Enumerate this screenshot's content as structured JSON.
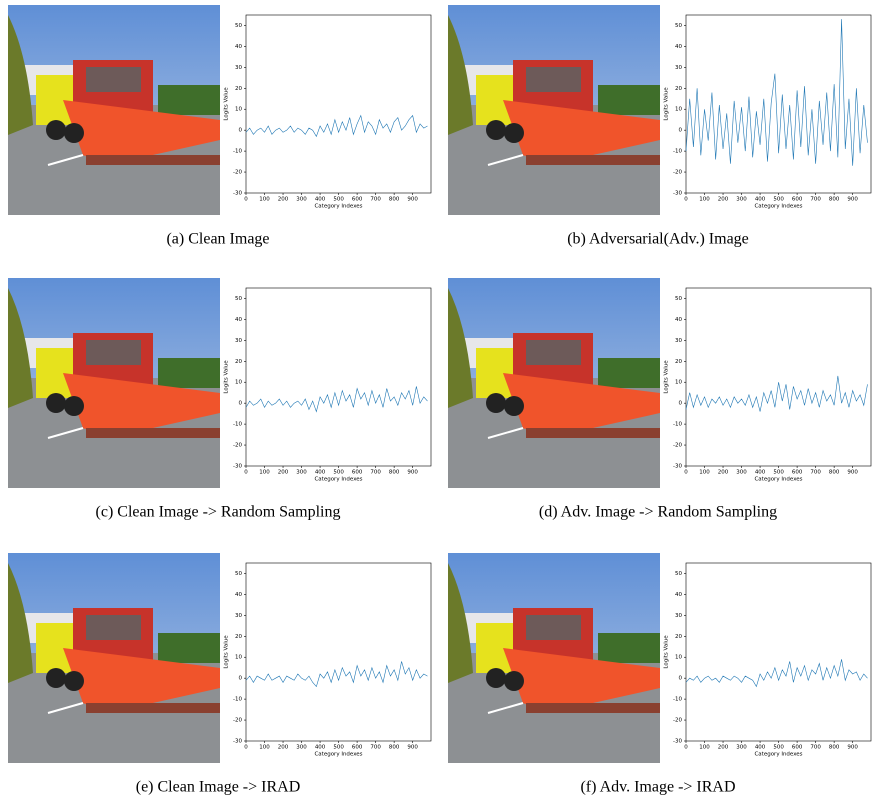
{
  "chart_data": [
    {
      "type": "line",
      "caption": "(a) Clean Image",
      "xlabel": "Category Indexes",
      "ylabel": "Logits Value",
      "color": "#1f77b4",
      "xlim": [
        0,
        999
      ],
      "ylim": [
        -30,
        55
      ],
      "xticks": [
        0,
        100,
        200,
        300,
        400,
        500,
        600,
        700,
        800,
        900
      ],
      "yticks": [
        -30,
        -20,
        -10,
        0,
        10,
        20,
        30,
        40,
        50
      ],
      "x": [
        0,
        20,
        40,
        60,
        80,
        100,
        120,
        140,
        160,
        180,
        200,
        220,
        240,
        260,
        280,
        300,
        320,
        340,
        360,
        380,
        400,
        420,
        440,
        460,
        480,
        500,
        520,
        540,
        560,
        580,
        600,
        620,
        640,
        660,
        680,
        700,
        720,
        740,
        760,
        780,
        800,
        820,
        840,
        860,
        880,
        900,
        920,
        940,
        960,
        980
      ],
      "values": [
        -1,
        1,
        -2,
        0,
        1,
        -1,
        2,
        -2,
        0,
        1,
        -1,
        0,
        2,
        -1,
        1,
        0,
        -2,
        1,
        0,
        -3,
        2,
        -1,
        3,
        -2,
        5,
        -1,
        4,
        0,
        6,
        -2,
        3,
        7,
        -1,
        4,
        2,
        -2,
        5,
        1,
        3,
        -1,
        4,
        6,
        0,
        2,
        5,
        7,
        -1,
        3,
        1,
        2
      ]
    },
    {
      "type": "line",
      "caption": "(b) Adversarial(Adv.) Image",
      "xlabel": "Category Indexes",
      "ylabel": "Logits Value",
      "color": "#1f77b4",
      "xlim": [
        0,
        999
      ],
      "ylim": [
        -30,
        55
      ],
      "xticks": [
        0,
        100,
        200,
        300,
        400,
        500,
        600,
        700,
        800,
        900
      ],
      "yticks": [
        -30,
        -20,
        -10,
        0,
        10,
        20,
        30,
        40,
        50
      ],
      "x": [
        0,
        20,
        40,
        60,
        80,
        100,
        120,
        140,
        160,
        180,
        200,
        220,
        240,
        260,
        280,
        300,
        320,
        340,
        360,
        380,
        400,
        420,
        440,
        460,
        480,
        500,
        520,
        540,
        560,
        580,
        600,
        620,
        640,
        660,
        680,
        700,
        720,
        740,
        760,
        780,
        800,
        820,
        840,
        860,
        880,
        900,
        920,
        940,
        960,
        980
      ],
      "values": [
        -10,
        15,
        -8,
        20,
        -12,
        10,
        -5,
        18,
        -14,
        12,
        -9,
        8,
        -16,
        14,
        -6,
        11,
        -10,
        16,
        -13,
        9,
        -7,
        15,
        -15,
        13,
        27,
        -11,
        17,
        -9,
        12,
        -14,
        19,
        -8,
        21,
        -12,
        10,
        -16,
        14,
        -7,
        18,
        -10,
        22,
        -13,
        53,
        -9,
        15,
        -17,
        20,
        -11,
        12,
        -6
      ]
    },
    {
      "type": "line",
      "caption": "(c) Clean Image -> Random Sampling",
      "xlabel": "Category Indexes",
      "ylabel": "Logits Value",
      "color": "#1f77b4",
      "xlim": [
        0,
        999
      ],
      "ylim": [
        -30,
        55
      ],
      "xticks": [
        0,
        100,
        200,
        300,
        400,
        500,
        600,
        700,
        800,
        900
      ],
      "yticks": [
        -30,
        -20,
        -10,
        0,
        10,
        20,
        30,
        40,
        50
      ],
      "x": [
        0,
        20,
        40,
        60,
        80,
        100,
        120,
        140,
        160,
        180,
        200,
        220,
        240,
        260,
        280,
        300,
        320,
        340,
        360,
        380,
        400,
        420,
        440,
        460,
        480,
        500,
        520,
        540,
        560,
        580,
        600,
        620,
        640,
        660,
        680,
        700,
        720,
        740,
        760,
        780,
        800,
        820,
        840,
        860,
        880,
        900,
        920,
        940,
        960,
        980
      ],
      "values": [
        -2,
        1,
        -1,
        0,
        2,
        -2,
        1,
        -1,
        0,
        2,
        -1,
        1,
        -2,
        0,
        1,
        -1,
        2,
        -3,
        1,
        -4,
        3,
        0,
        4,
        -2,
        5,
        -1,
        6,
        1,
        4,
        -2,
        7,
        2,
        5,
        -1,
        6,
        0,
        4,
        -2,
        7,
        1,
        3,
        -1,
        5,
        2,
        6,
        -1,
        8,
        0,
        3,
        1
      ]
    },
    {
      "type": "line",
      "caption": "(d) Adv. Image -> Random Sampling",
      "xlabel": "Category Indexes",
      "ylabel": "Logits Value",
      "color": "#1f77b4",
      "xlim": [
        0,
        999
      ],
      "ylim": [
        -30,
        55
      ],
      "xticks": [
        0,
        100,
        200,
        300,
        400,
        500,
        600,
        700,
        800,
        900
      ],
      "yticks": [
        -30,
        -20,
        -10,
        0,
        10,
        20,
        30,
        40,
        50
      ],
      "x": [
        0,
        20,
        40,
        60,
        80,
        100,
        120,
        140,
        160,
        180,
        200,
        220,
        240,
        260,
        280,
        300,
        320,
        340,
        360,
        380,
        400,
        420,
        440,
        460,
        480,
        500,
        520,
        540,
        560,
        580,
        600,
        620,
        640,
        660,
        680,
        700,
        720,
        740,
        760,
        780,
        800,
        820,
        840,
        860,
        880,
        900,
        920,
        940,
        960,
        980
      ],
      "values": [
        -3,
        5,
        -2,
        4,
        -1,
        3,
        -2,
        2,
        0,
        3,
        -1,
        2,
        -2,
        3,
        0,
        2,
        -1,
        4,
        -2,
        3,
        -4,
        5,
        0,
        6,
        -2,
        10,
        1,
        9,
        -3,
        8,
        2,
        6,
        -1,
        7,
        0,
        5,
        -2,
        6,
        1,
        4,
        -1,
        13,
        0,
        5,
        -2,
        6,
        1,
        4,
        -1,
        9
      ]
    },
    {
      "type": "line",
      "caption": "(e) Clean Image -> IRAD",
      "xlabel": "Category Indexes",
      "ylabel": "Logits Value",
      "color": "#1f77b4",
      "xlim": [
        0,
        999
      ],
      "ylim": [
        -30,
        55
      ],
      "xticks": [
        0,
        100,
        200,
        300,
        400,
        500,
        600,
        700,
        800,
        900
      ],
      "yticks": [
        -30,
        -20,
        -10,
        0,
        10,
        20,
        30,
        40,
        50
      ],
      "x": [
        0,
        20,
        40,
        60,
        80,
        100,
        120,
        140,
        160,
        180,
        200,
        220,
        240,
        260,
        280,
        300,
        320,
        340,
        360,
        380,
        400,
        420,
        440,
        460,
        480,
        500,
        520,
        540,
        560,
        580,
        600,
        620,
        640,
        660,
        680,
        700,
        720,
        740,
        760,
        780,
        800,
        820,
        840,
        860,
        880,
        900,
        920,
        940,
        960,
        980
      ],
      "values": [
        -1,
        1,
        -2,
        1,
        0,
        -1,
        2,
        -1,
        0,
        1,
        -2,
        1,
        0,
        -1,
        2,
        0,
        -1,
        1,
        -2,
        -4,
        2,
        0,
        3,
        -2,
        4,
        -1,
        5,
        1,
        3,
        -2,
        6,
        1,
        4,
        -1,
        5,
        0,
        3,
        -2,
        6,
        1,
        4,
        -1,
        8,
        2,
        5,
        -1,
        4,
        0,
        2,
        1
      ]
    },
    {
      "type": "line",
      "caption": "(f) Adv. Image -> IRAD",
      "xlabel": "Category Indexes",
      "ylabel": "Logits Value",
      "color": "#1f77b4",
      "xlim": [
        0,
        999
      ],
      "ylim": [
        -30,
        55
      ],
      "xticks": [
        0,
        100,
        200,
        300,
        400,
        500,
        600,
        700,
        800,
        900
      ],
      "yticks": [
        -30,
        -20,
        -10,
        0,
        10,
        20,
        30,
        40,
        50
      ],
      "x": [
        0,
        20,
        40,
        60,
        80,
        100,
        120,
        140,
        160,
        180,
        200,
        220,
        240,
        260,
        280,
        300,
        320,
        340,
        360,
        380,
        400,
        420,
        440,
        460,
        480,
        500,
        520,
        540,
        560,
        580,
        600,
        620,
        640,
        660,
        680,
        700,
        720,
        740,
        760,
        780,
        800,
        820,
        840,
        860,
        880,
        900,
        920,
        940,
        960,
        980
      ],
      "values": [
        -2,
        0,
        -1,
        1,
        -2,
        0,
        1,
        -1,
        0,
        -2,
        1,
        0,
        -1,
        1,
        0,
        -2,
        1,
        0,
        -1,
        -4,
        2,
        -1,
        3,
        0,
        5,
        -1,
        4,
        1,
        8,
        -2,
        5,
        1,
        6,
        -1,
        4,
        2,
        7,
        -1,
        5,
        0,
        6,
        1,
        9,
        -1,
        4,
        2,
        3,
        -1,
        2,
        0
      ]
    }
  ]
}
